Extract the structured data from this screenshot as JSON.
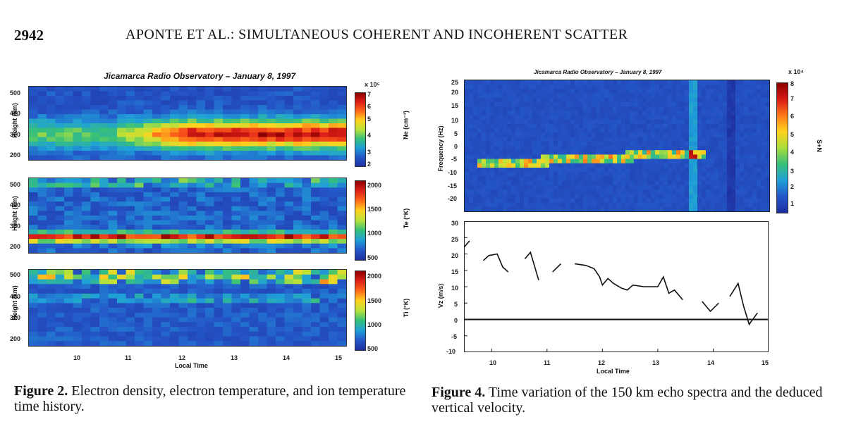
{
  "header": {
    "page_number": "2942",
    "running_head": "APONTE ET AL.: SIMULTANEOUS COHERENT AND INCOHERENT SCATTER"
  },
  "figure2": {
    "title": "Jicamarca Radio Observatory – January 8, 1997",
    "ylabel": "Height (km)",
    "xlabel": "Local Time",
    "x_ticks": [
      "10",
      "11",
      "12",
      "13",
      "14",
      "15"
    ],
    "panels": [
      {
        "y_ticks": [
          "500",
          "400",
          "300",
          "200"
        ],
        "colorbar_label": "Ne (cm⁻³)",
        "colorbar_scale": "x 10⁵",
        "colorbar_ticks": [
          "7",
          "6",
          "5",
          "4",
          "3",
          "2"
        ]
      },
      {
        "y_ticks": [
          "500",
          "400",
          "300",
          "200"
        ],
        "colorbar_label": "Te (°K)",
        "colorbar_scale": "",
        "colorbar_ticks": [
          "2000",
          "1500",
          "1000",
          "500"
        ]
      },
      {
        "y_ticks": [
          "500",
          "400",
          "300",
          "200"
        ],
        "colorbar_label": "Ti (°K)",
        "colorbar_scale": "",
        "colorbar_ticks": [
          "2000",
          "1500",
          "1000",
          "500"
        ]
      }
    ],
    "caption_label": "Figure 2.",
    "caption_text": " Electron density, electron temperature, and ion temperature time history."
  },
  "figure4": {
    "title": "Jicamarca Radio Observatory – January 8, 1997",
    "spectrum": {
      "ylabel": "Frequency (Hz)",
      "y_ticks": [
        "25",
        "20",
        "15",
        "10",
        "5",
        "0",
        "-5",
        "-10",
        "-15",
        "-20"
      ],
      "colorbar_label": "S+N",
      "colorbar_scale": "x 10⁴",
      "colorbar_ticks": [
        "8",
        "7",
        "6",
        "5",
        "4",
        "3",
        "2",
        "1"
      ]
    },
    "velocity": {
      "ylabel": "Vz (m/s)",
      "y_ticks": [
        "30",
        "25",
        "20",
        "15",
        "10",
        "5",
        "0",
        "-5",
        "-10"
      ],
      "x_ticks": [
        "10",
        "11",
        "12",
        "13",
        "14",
        "15"
      ],
      "xlabel": "Local Time"
    },
    "caption_label": "Figure 4.",
    "caption_text": " Time variation of the 150 km echo spectra and the deduced vertical velocity."
  },
  "chart_data": [
    {
      "type": "line",
      "xlabel": "Local Time",
      "ylabel": "Vz (m/s)",
      "xlim": [
        9.5,
        15
      ],
      "ylim": [
        -10,
        30
      ],
      "grid": false,
      "segments": [
        [
          [
            9.5,
            22
          ],
          [
            9.6,
            24
          ]
        ],
        [
          [
            9.85,
            18
          ],
          [
            9.95,
            19.5
          ],
          [
            10.1,
            20
          ],
          [
            10.2,
            16
          ],
          [
            10.3,
            14.5
          ]
        ],
        [
          [
            10.6,
            18.5
          ],
          [
            10.7,
            20.5
          ],
          [
            10.85,
            12
          ]
        ],
        [
          [
            11.1,
            14.5
          ],
          [
            11.25,
            17
          ]
        ],
        [
          [
            11.5,
            17
          ],
          [
            11.7,
            16.5
          ],
          [
            11.85,
            15.5
          ],
          [
            11.95,
            13
          ],
          [
            12.0,
            10.5
          ],
          [
            12.1,
            12.5
          ],
          [
            12.2,
            11
          ],
          [
            12.35,
            9.5
          ],
          [
            12.45,
            9
          ],
          [
            12.55,
            10.5
          ],
          [
            12.75,
            10
          ],
          [
            12.9,
            10
          ],
          [
            13.0,
            10
          ],
          [
            13.1,
            13
          ],
          [
            13.2,
            8
          ],
          [
            13.3,
            9
          ],
          [
            13.45,
            6
          ]
        ],
        [
          [
            13.8,
            5.5
          ],
          [
            13.95,
            2.5
          ],
          [
            14.1,
            5
          ]
        ],
        [
          [
            14.3,
            7
          ],
          [
            14.45,
            11
          ],
          [
            14.55,
            4
          ],
          [
            14.65,
            -1.5
          ],
          [
            14.8,
            2
          ]
        ]
      ]
    }
  ],
  "colors": {
    "fig2_heatmap_base": "#1d3fa8",
    "fig4_spectrum_base": "#1a3d8f",
    "ink": "#111111"
  }
}
